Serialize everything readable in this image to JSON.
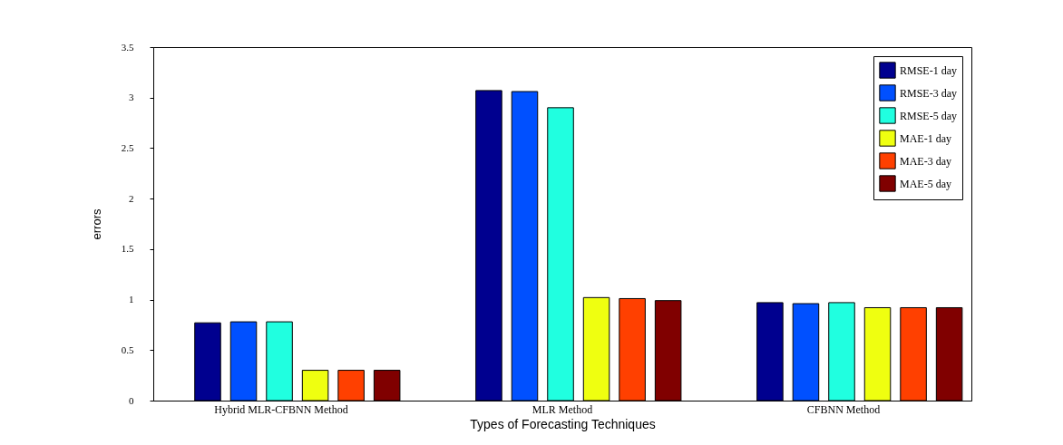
{
  "chart_data": {
    "type": "bar",
    "xlabel": "Types of Forecasting Techniques",
    "ylabel": "errors",
    "categories": [
      "Hybrid MLR-CFBNN Method",
      "MLR Method",
      "CFBNN Method"
    ],
    "series": [
      {
        "name": "RMSE-1 day",
        "color": "#00008f",
        "values": [
          0.77,
          3.07,
          0.97
        ]
      },
      {
        "name": "RMSE-3 day",
        "color": "#0050ff",
        "values": [
          0.78,
          3.06,
          0.96
        ]
      },
      {
        "name": "RMSE-5 day",
        "color": "#20ffe0",
        "values": [
          0.78,
          2.9,
          0.97
        ]
      },
      {
        "name": "MAE-1 day",
        "color": "#efff10",
        "values": [
          0.3,
          1.02,
          0.92
        ]
      },
      {
        "name": "MAE-3 day",
        "color": "#ff4000",
        "values": [
          0.3,
          1.01,
          0.92
        ]
      },
      {
        "name": "MAE-5 day",
        "color": "#800000",
        "values": [
          0.3,
          0.99,
          0.92
        ]
      }
    ],
    "ylim": [
      0,
      3.5
    ],
    "yticks": [
      0,
      0.5,
      1,
      1.5,
      2,
      2.5,
      3,
      3.5
    ],
    "grid": false,
    "legend": "top right"
  }
}
